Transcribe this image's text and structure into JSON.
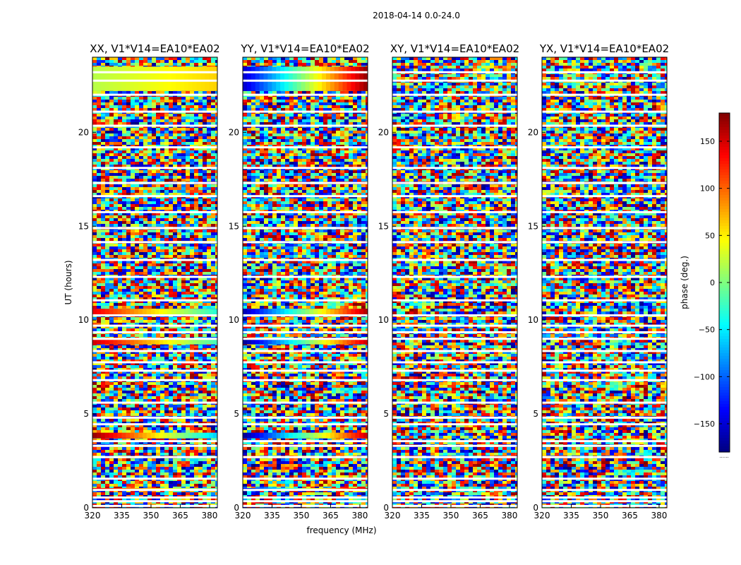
{
  "figure": {
    "suptitle": "2018-04-14 0.0-24.0"
  },
  "chart_data": {
    "type": "heatmap",
    "xlabel": "frequency (MHz)",
    "ylabel": "UT (hours)",
    "xlim": [
      320,
      384
    ],
    "ylim": [
      0,
      24
    ],
    "xticks": [
      320,
      335,
      350,
      365,
      380
    ],
    "yticks": [
      0,
      5,
      10,
      15,
      20
    ],
    "colorbar": {
      "label": "phase (deg.)",
      "range": [
        -180,
        180
      ],
      "ticks": [
        150,
        100,
        50,
        0,
        -50,
        -100,
        -150
      ],
      "tick_labels": [
        "150",
        "100",
        "50",
        "0",
        "−50",
        "−100",
        "−150"
      ],
      "footer": "......",
      "colormap": [
        "#00007f",
        "#0000ff",
        "#007fff",
        "#00ffff",
        "#7fff7f",
        "#ffff00",
        "#ff7f00",
        "#ff0000",
        "#7f0000"
      ]
    },
    "panels": [
      {
        "title": "XX, V1*V14=EA10*EA02",
        "coherent_bands": [
          {
            "t0": 22.2,
            "t1": 23.5,
            "p0": 20,
            "p1": 60
          },
          {
            "t0": 10.3,
            "t1": 10.6,
            "p0": 140,
            "p1": -30
          },
          {
            "t0": 8.7,
            "t1": 8.95,
            "p0": 150,
            "p1": -20
          },
          {
            "t0": 3.7,
            "t1": 4.0,
            "p0": 170,
            "p1": -60
          },
          {
            "t0": 0.9,
            "t1": 1.05,
            "p0": 140,
            "p1": -20
          }
        ]
      },
      {
        "title": "YY, V1*V14=EA10*EA02",
        "coherent_bands": [
          {
            "t0": 22.2,
            "t1": 23.5,
            "p0": -150,
            "p1": 170
          },
          {
            "t0": 10.3,
            "t1": 10.6,
            "p0": -160,
            "p1": 160
          },
          {
            "t0": 8.7,
            "t1": 8.95,
            "p0": -170,
            "p1": 150
          },
          {
            "t0": 3.7,
            "t1": 4.0,
            "p0": -170,
            "p1": 150
          },
          {
            "t0": 0.9,
            "t1": 1.05,
            "p0": -140,
            "p1": 160
          }
        ]
      },
      {
        "title": "XY, V1*V14=EA10*EA02",
        "coherent_bands": []
      },
      {
        "title": "YX, V1*V14=EA10*EA02",
        "coherent_bands": []
      }
    ],
    "flagged_gaps_hours": [
      0.1,
      0.35,
      0.55,
      0.95,
      1.55,
      2.7,
      3.3,
      3.55,
      4.45,
      4.8,
      5.6,
      6.8,
      7.3,
      7.75,
      8.35,
      9.0,
      9.35,
      9.7,
      10.25,
      11.05,
      12.3,
      13.2,
      14.15,
      14.9,
      15.75,
      16.6,
      17.3,
      18.1,
      19.2,
      20.35,
      21.1,
      22.0,
      22.75,
      23.2
    ]
  }
}
